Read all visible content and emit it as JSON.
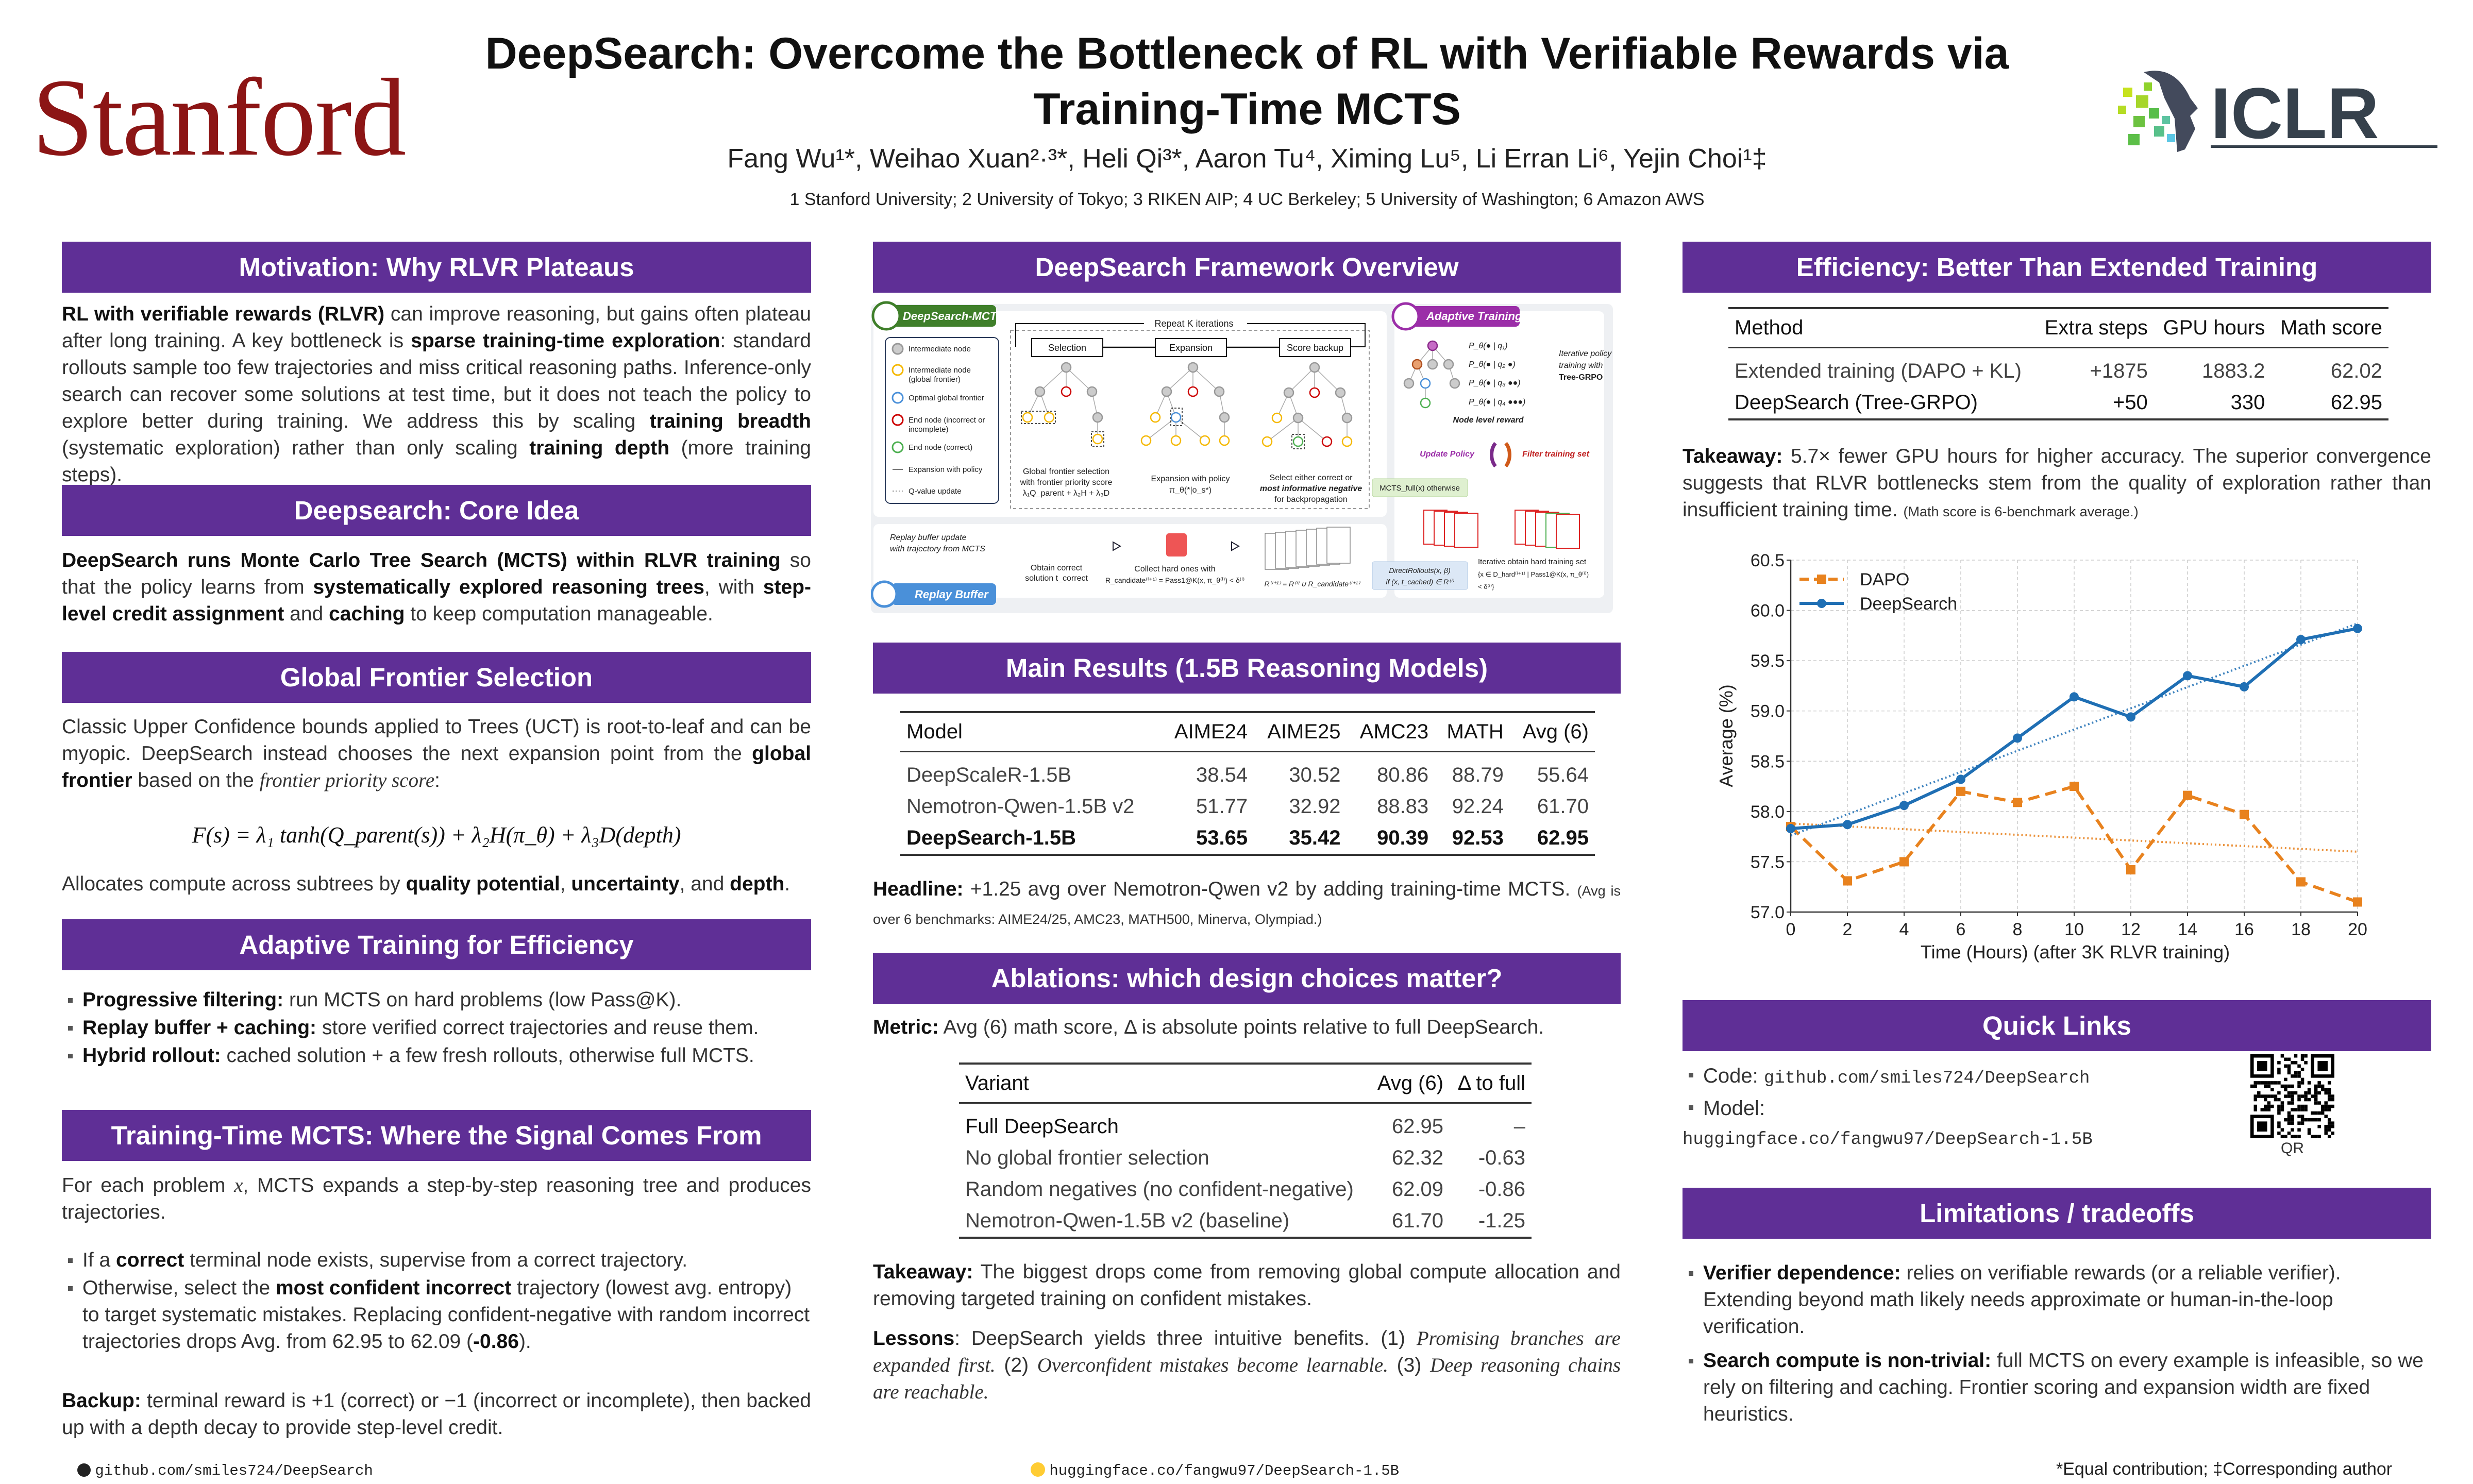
{
  "header": {
    "logo_left": "Stanford",
    "logo_right": "ICLR",
    "title_line1": "DeepSearch: Overcome the Bottleneck of RL with Verifiable Rewards via",
    "title_line2": "Training-Time MCTS",
    "authors": "Fang Wu¹*, Weihao Xuan²·³*, Heli Qi³*, Aaron Tu⁴, Ximing Lu⁵, Li Erran Li⁶, Yejin Choi¹‡",
    "affiliations": "1 Stanford University; 2 University of Tokyo; 3 RIKEN AIP; 4 UC Berkeley; 5 University of Washington; 6 Amazon AWS"
  },
  "colors": {
    "section_header": "#5f2f96",
    "stanford": "#8C1515",
    "dapo": "#e8821e",
    "deepsearch": "#1f6fb4"
  },
  "motivation": {
    "title": "Motivation: Why RLVR Plateaus",
    "body": [
      {
        "t": "RL with verifiable rewards (RLVR)",
        "s": "b"
      },
      {
        "t": " can improve reasoning, but gains often plateau after long training. A key bottleneck is "
      },
      {
        "t": "sparse training-time exploration",
        "s": "b"
      },
      {
        "t": ": standard rollouts sample too few trajectories and miss critical reasoning paths. Inference-only search can recover some solutions at test time, but it does not teach the policy to explore better during training. We address this by scaling "
      },
      {
        "t": "training breadth",
        "s": "b"
      },
      {
        "t": " (systematic exploration) rather than only scaling "
      },
      {
        "t": "training depth",
        "s": "b"
      },
      {
        "t": " (more training steps)."
      }
    ]
  },
  "core_idea": {
    "title": "Deepsearch: Core Idea",
    "body": [
      {
        "t": "DeepSearch runs Monte Carlo Tree Search (MCTS) within RLVR training",
        "s": "b"
      },
      {
        "t": " so that the policy learns from "
      },
      {
        "t": "systematically explored reasoning trees",
        "s": "b"
      },
      {
        "t": ", with "
      },
      {
        "t": "step-level credit assignment",
        "s": "b"
      },
      {
        "t": " and "
      },
      {
        "t": "caching",
        "s": "b"
      },
      {
        "t": " to keep computation manageable."
      }
    ]
  },
  "frontier": {
    "title": "Global Frontier Selection",
    "body": [
      {
        "t": "Classic Upper Confidence bounds applied to Trees (UCT) is root-to-leaf and can be myopic. DeepSearch instead chooses the next expansion point from the "
      },
      {
        "t": "global frontier",
        "s": "b"
      },
      {
        "t": " based on the "
      },
      {
        "t": "frontier priority score",
        "s": "i"
      },
      {
        "t": ":"
      }
    ],
    "formula": "F(s) = λ₁ tanh(Q_parent(s))  +  λ₂H(π_θ)  +  λ₃D(depth)",
    "after": [
      {
        "t": "Allocates compute across subtrees by "
      },
      {
        "t": "quality potential",
        "s": "b"
      },
      {
        "t": ", "
      },
      {
        "t": "uncertainty",
        "s": "b"
      },
      {
        "t": ", and "
      },
      {
        "t": "depth",
        "s": "b"
      },
      {
        "t": "."
      }
    ]
  },
  "adaptive": {
    "title": "Adaptive Training for Efficiency",
    "bullets": [
      [
        {
          "t": "Progressive filtering:",
          "s": "b"
        },
        {
          "t": " run MCTS on hard problems (low Pass@K)."
        }
      ],
      [
        {
          "t": "Replay buffer + caching:",
          "s": "b"
        },
        {
          "t": " store verified correct trajectories and reuse them."
        }
      ],
      [
        {
          "t": "Hybrid rollout:",
          "s": "b"
        },
        {
          "t": " cached solution + a few fresh rollouts, otherwise full MCTS."
        }
      ]
    ]
  },
  "signal": {
    "title": "Training-Time MCTS: Where the Signal Comes From",
    "intro": [
      {
        "t": "For each problem "
      },
      {
        "t": "x",
        "s": "i"
      },
      {
        "t": ", MCTS expands a step-by-step reasoning tree and produces trajectories."
      }
    ],
    "bullets": [
      [
        {
          "t": "If a "
        },
        {
          "t": "correct",
          "s": "b"
        },
        {
          "t": " terminal node exists, supervise from a correct trajectory."
        }
      ],
      [
        {
          "t": "Otherwise, select the "
        },
        {
          "t": "most confident incorrect",
          "s": "b"
        },
        {
          "t": " trajectory (lowest avg. entropy) to target systematic mistakes. Replacing confident-negative with random incorrect trajectories drops Avg. from 62.95 to 62.09 ("
        },
        {
          "t": "-0.86",
          "s": "b"
        },
        {
          "t": ")."
        }
      ]
    ],
    "backup": [
      {
        "t": "Backup:",
        "s": "b"
      },
      {
        "t": "  terminal reward is +1 (correct) or −1 (incorrect or incomplete), then backed up with a depth decay to provide step-level credit."
      }
    ]
  },
  "framework": {
    "title": "DeepSearch Framework Overview",
    "badge_mcts": "DeepSearch-MCTS",
    "badge_adaptive": "Adaptive Training",
    "badge_replay": "Replay Buffer",
    "legend": [
      "Intermediate node",
      "Intermediate node",
      "(global frontier)",
      "Optimal global frontier",
      "End node (incorrect or",
      "incomplete)",
      "End node (correct)",
      "Expansion with policy",
      "Q-value update"
    ],
    "repeat": "Repeat K iterations",
    "steps": [
      "Selection",
      "Expansion",
      "Score backup"
    ],
    "cap_selection": [
      "Global frontier selection",
      "with frontier priority score",
      "λ₁Q_parent + λ₂H + λ₃D"
    ],
    "cap_expansion": [
      "Expansion with policy",
      "π_θ(*|o_s*)"
    ],
    "cap_backup": [
      "Select either correct or",
      "most informative negative",
      "for backpropagation"
    ],
    "policy_terms": [
      "P_θ(● | q₁)",
      "P_θ(● | q₂ ●)",
      "P_θ(● | q₃ ●●)",
      "P_θ(● | q₄ ●●●)"
    ],
    "iterative_policy": [
      "Iterative policy",
      "training with",
      "Tree-GRPO"
    ],
    "node_reward": "Node level reward",
    "update_policy": "Update Policy",
    "filter_set": "Filter training set",
    "mcts_full": "MCTS_full(x) otherwise",
    "direct_rollouts": [
      "DirectRollouts(x, β)",
      "if (x, t_cached) ∈ R⁽ⁱ⁾"
    ],
    "hard_set": [
      "Iterative obtain hard training set",
      "{x ∈ D_hard⁽ⁱ⁺¹⁾ | Pass1@K(x, π_θ⁽ⁱ⁾)",
      "< δ⁽ⁱ⁾}"
    ],
    "replay_update": [
      "Replay buffer update",
      "with trajectory from MCTS"
    ],
    "obtain_correct": [
      "Obtain correct",
      "solution t_correct"
    ],
    "collect_hard": [
      "Collect hard ones with",
      "R_candidate⁽ⁱ⁺¹⁾ = Pass1@K(x, π_θ⁽ⁱ⁾) < δ⁽ⁱ⁾"
    ],
    "buffer_update": "R⁽ⁱ⁺¹⁾ = R⁽ⁱ⁾ ∪ R_candidate⁽ⁱ⁺¹⁾"
  },
  "main_results": {
    "title": "Main Results (1.5B Reasoning Models)",
    "columns": [
      "Model",
      "AIME24",
      "AIME25",
      "AMC23",
      "MATH",
      "Avg (6)"
    ],
    "rows": [
      [
        "DeepScaleR-1.5B",
        "38.54",
        "30.52",
        "80.86",
        "88.79",
        "55.64"
      ],
      [
        "Nemotron-Qwen-1.5B v2",
        "51.77",
        "32.92",
        "88.83",
        "92.24",
        "61.70"
      ],
      [
        "DeepSearch-1.5B",
        "53.65",
        "35.42",
        "90.39",
        "92.53",
        "62.95"
      ]
    ],
    "headline": [
      {
        "t": "Headline:",
        "s": "b"
      },
      {
        "t": " +1.25 avg over Nemotron-Qwen v2 by adding training-time MCTS. "
      },
      {
        "t": "(Avg is over 6 benchmarks: AIME24/25, AMC23, MATH500, Minerva, Olympiad.)",
        "s": "sm"
      }
    ]
  },
  "ablations": {
    "title": "Ablations: which design choices matter?",
    "metric": [
      {
        "t": "Metric:",
        "s": "b"
      },
      {
        "t": " Avg (6) math score, Δ is absolute points relative to full DeepSearch."
      }
    ],
    "columns": [
      "Variant",
      "Avg (6)",
      "Δ to full"
    ],
    "rows": [
      [
        "Full DeepSearch",
        "62.95",
        "–"
      ],
      [
        "No global frontier selection",
        "62.32",
        "-0.63"
      ],
      [
        "Random negatives (no confident-negative)",
        "62.09",
        "-0.86"
      ],
      [
        "Nemotron-Qwen-1.5B v2 (baseline)",
        "61.70",
        "-1.25"
      ]
    ],
    "takeaway": [
      {
        "t": "Takeaway:",
        "s": "b"
      },
      {
        "t": " The biggest drops come from removing global compute allocation and removing targeted training on confident mistakes."
      }
    ],
    "lessons": [
      {
        "t": "Lessons",
        "s": "b"
      },
      {
        "t": ": DeepSearch yields three intuitive benefits. (1) "
      },
      {
        "t": "Promising branches are expanded first.",
        "s": "i"
      },
      {
        "t": "  (2) "
      },
      {
        "t": "Overconfident mistakes become learnable.",
        "s": "i"
      },
      {
        "t": "  (3) "
      },
      {
        "t": "Deep reasoning chains are reachable.",
        "s": "i"
      }
    ]
  },
  "efficiency": {
    "title": "Efficiency: Better Than Extended Training",
    "columns": [
      "Method",
      "Extra steps",
      "GPU hours",
      "Math score"
    ],
    "rows": [
      [
        "Extended training (DAPO + KL)",
        "+1875",
        "1883.2",
        "62.02"
      ],
      [
        "DeepSearch (Tree-GRPO)",
        "+50",
        "330",
        "62.95"
      ]
    ],
    "takeaway": [
      {
        "t": "Takeaway:",
        "s": "b"
      },
      {
        "t": " 5.7× fewer GPU hours for higher accuracy. The superior convergence suggests that RLVR bottlenecks stem from the quality of exploration rather than insufficient training time. "
      },
      {
        "t": "(Math score is 6-benchmark average.)",
        "s": "sm"
      }
    ]
  },
  "chart_data": {
    "type": "line",
    "xlabel": "Time (Hours) (after 3K RLVR training)",
    "ylabel": "Average (%)",
    "x": [
      0,
      2,
      4,
      6,
      8,
      10,
      12,
      14,
      16,
      18,
      20
    ],
    "xlim": [
      0,
      20
    ],
    "ylim": [
      57.0,
      60.5
    ],
    "xticks": [
      0,
      2,
      4,
      6,
      8,
      10,
      12,
      14,
      16,
      18,
      20
    ],
    "yticks": [
      "57.0",
      "57.5",
      "58.0",
      "58.5",
      "59.0",
      "59.5",
      "60.0",
      "60.5"
    ],
    "grid": true,
    "legend": "top-left",
    "series": [
      {
        "name": "DAPO",
        "color": "#e8821e",
        "style": "dashed",
        "marker": "square",
        "values": [
          57.85,
          57.31,
          57.5,
          58.2,
          58.09,
          58.25,
          57.42,
          58.16,
          57.97,
          57.3,
          57.1
        ],
        "trend": [
          57.88,
          57.6
        ]
      },
      {
        "name": "DeepSearch",
        "color": "#1f6fb4",
        "style": "solid",
        "marker": "circle",
        "values": [
          57.83,
          57.87,
          58.06,
          58.32,
          58.73,
          59.14,
          58.94,
          59.35,
          59.24,
          59.71,
          59.82
        ],
        "trend": [
          57.76,
          59.87
        ]
      }
    ]
  },
  "quick_links": {
    "title": "Quick Links",
    "code_label": "Code:",
    "code_url": "github.com/smiles724/DeepSearch",
    "model_label": "Model:",
    "model_url": "huggingface.co/fangwu97/DeepSearch-1.5B",
    "qr_label": "QR"
  },
  "limitations": {
    "title": "Limitations / tradeoffs",
    "bullets": [
      [
        {
          "t": "Verifier dependence:",
          "s": "b"
        },
        {
          "t": " relies on verifiable rewards (or a reliable verifier). Extending beyond math likely needs approximate or human-in-the-loop verification."
        }
      ],
      [
        {
          "t": "Search compute is non-trivial:",
          "s": "b"
        },
        {
          "t": " full MCTS on every example is infeasible, so we rely on filtering and caching. Frontier scoring and expansion width are fixed heuristics."
        }
      ]
    ]
  },
  "footer": {
    "github": "github.com/smiles724/DeepSearch",
    "huggingface": "huggingface.co/fangwu97/DeepSearch-1.5B",
    "note": "*Equal contribution; ‡Corresponding author"
  }
}
